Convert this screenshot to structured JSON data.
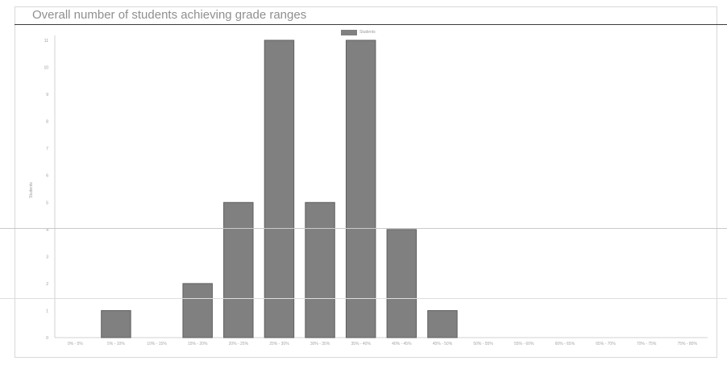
{
  "title": "Overall number of students achieving grade ranges",
  "chart_data": {
    "type": "bar",
    "title": "Overall number of students achieving grade ranges",
    "xlabel": "",
    "ylabel": "Students",
    "categories": [
      "0% - 5%",
      "5% - 10%",
      "10% - 15%",
      "15% - 20%",
      "20% - 25%",
      "25% - 30%",
      "30% - 35%",
      "35% - 40%",
      "40% - 45%",
      "45% - 50%",
      "50% - 55%",
      "55% - 60%",
      "60% - 65%",
      "65% - 70%",
      "70% - 75%",
      "75% - 80%"
    ],
    "series": [
      {
        "name": "Students",
        "values": [
          0,
          1,
          0,
          2,
          5,
          11,
          5,
          11,
          4,
          1,
          0,
          0,
          0,
          0,
          0,
          0
        ]
      }
    ],
    "ylim": [
      0,
      11
    ],
    "grid": false,
    "legend": "top-center",
    "colors": {
      "bar": "#808080",
      "bar_border": "#5f5f5f"
    }
  }
}
